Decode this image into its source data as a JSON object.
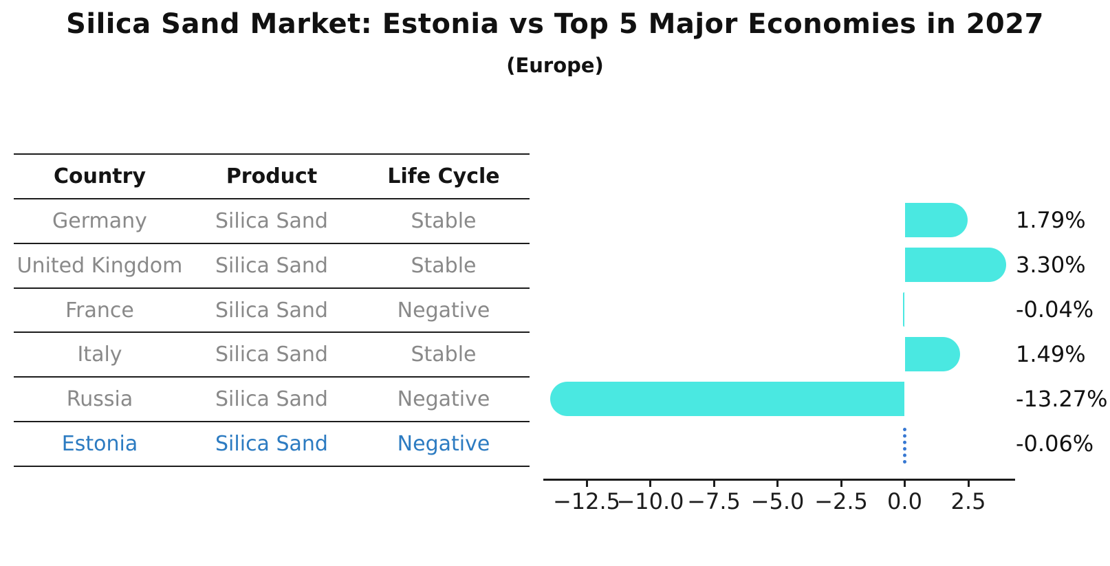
{
  "title": "Silica Sand Market: Estonia vs Top 5 Major Economies in 2027",
  "subtitle": "(Europe)",
  "table": {
    "headers": [
      "Country",
      "Product",
      "Life Cycle"
    ],
    "rows": [
      {
        "country": "Germany",
        "product": "Silica Sand",
        "life_cycle": "Stable",
        "highlight": false
      },
      {
        "country": "United Kingdom",
        "product": "Silica Sand",
        "life_cycle": "Stable",
        "highlight": false
      },
      {
        "country": "France",
        "product": "Silica Sand",
        "life_cycle": "Negative",
        "highlight": false
      },
      {
        "country": "Italy",
        "product": "Silica Sand",
        "life_cycle": "Stable",
        "highlight": false
      },
      {
        "country": "Russia",
        "product": "Silica Sand",
        "life_cycle": "Negative",
        "highlight": false
      },
      {
        "country": "Estonia",
        "product": "Silica Sand",
        "life_cycle": "Negative",
        "highlight": true
      }
    ]
  },
  "chart_data": {
    "type": "bar",
    "orientation": "horizontal",
    "title": "Silica Sand Market: Estonia vs Top 5 Major Economies in 2027 (Europe)",
    "categories": [
      "Germany",
      "United Kingdom",
      "France",
      "Italy",
      "Russia",
      "Estonia"
    ],
    "values": [
      1.79,
      3.3,
      -0.04,
      1.49,
      -13.27,
      -0.06
    ],
    "value_labels": [
      "1.79%",
      "3.30%",
      "-0.04%",
      "1.49%",
      "-13.27%",
      "-0.06%"
    ],
    "x_ticks": [
      -12.5,
      -10.0,
      -7.5,
      -5.0,
      -2.5,
      0.0,
      2.5
    ],
    "x_tick_labels": [
      "−12.5",
      "−10.0",
      "−7.5",
      "−5.0",
      "−2.5",
      "0.0",
      "2.5"
    ],
    "xlim": [
      -14.2,
      4.35
    ],
    "grid": false,
    "legend": "none",
    "bar_style": "rounded-cap",
    "highlight_category": "Estonia",
    "highlight_style": "dotted-line-at-zero"
  },
  "colors": {
    "bar": "#4ae8e1",
    "highlight_blue": "#2c7bc1",
    "dotted_marker": "#3778d2",
    "text": "#111111",
    "muted_text": "#898989",
    "line": "#1c1c1c"
  }
}
